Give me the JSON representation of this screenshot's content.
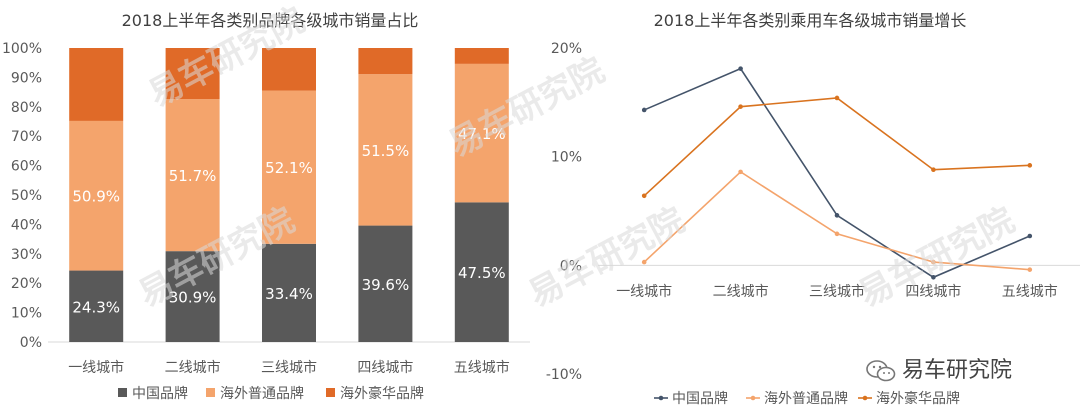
{
  "chart_data": [
    {
      "type": "bar",
      "stacked": true,
      "title": "2018上半年各类别品牌各级城市销量占比",
      "categories": [
        "一线城市",
        "二线城市",
        "三线城市",
        "四线城市",
        "五线城市"
      ],
      "ylim": [
        0,
        100
      ],
      "yticks": [
        "0%",
        "10%",
        "20%",
        "30%",
        "40%",
        "50%",
        "60%",
        "70%",
        "80%",
        "90%",
        "100%"
      ],
      "legend_position": "bottom",
      "series": [
        {
          "name": "中国品牌",
          "values": [
            24.3,
            30.9,
            33.4,
            39.6,
            47.5
          ],
          "labels": [
            "24.3%",
            "30.9%",
            "33.4%",
            "39.6%",
            "47.5%"
          ],
          "color": "#595959"
        },
        {
          "name": "海外普通品牌",
          "values": [
            50.9,
            51.7,
            52.1,
            51.5,
            47.1
          ],
          "labels": [
            "50.9%",
            "51.7%",
            "52.1%",
            "51.5%",
            "47.1%"
          ],
          "color": "#f4a46c"
        },
        {
          "name": "海外豪华品牌",
          "values": [
            24.8,
            17.4,
            14.5,
            8.9,
            5.4
          ],
          "color": "#e06a28"
        }
      ]
    },
    {
      "type": "line",
      "title": "2018上半年各类别乘用车各级城市销量增长",
      "categories": [
        "一线城市",
        "二线城市",
        "三线城市",
        "四线城市",
        "五线城市"
      ],
      "ylim": [
        -10,
        20
      ],
      "yticks": [
        "-10%",
        "0%",
        "10%",
        "20%"
      ],
      "legend_position": "bottom",
      "series": [
        {
          "name": "中国品牌",
          "values": [
            14.3,
            18.1,
            4.6,
            -1.1,
            2.7
          ],
          "color": "#44546a"
        },
        {
          "name": "海外普通品牌",
          "values": [
            0.3,
            8.6,
            2.9,
            0.3,
            -0.4
          ],
          "color": "#f4a46c"
        },
        {
          "name": "海外豪华品牌",
          "values": [
            6.4,
            14.6,
            15.4,
            8.8,
            9.2
          ],
          "color": "#d9731f"
        }
      ]
    }
  ],
  "watermark": "易车研究院",
  "brand_label": "易车研究院"
}
